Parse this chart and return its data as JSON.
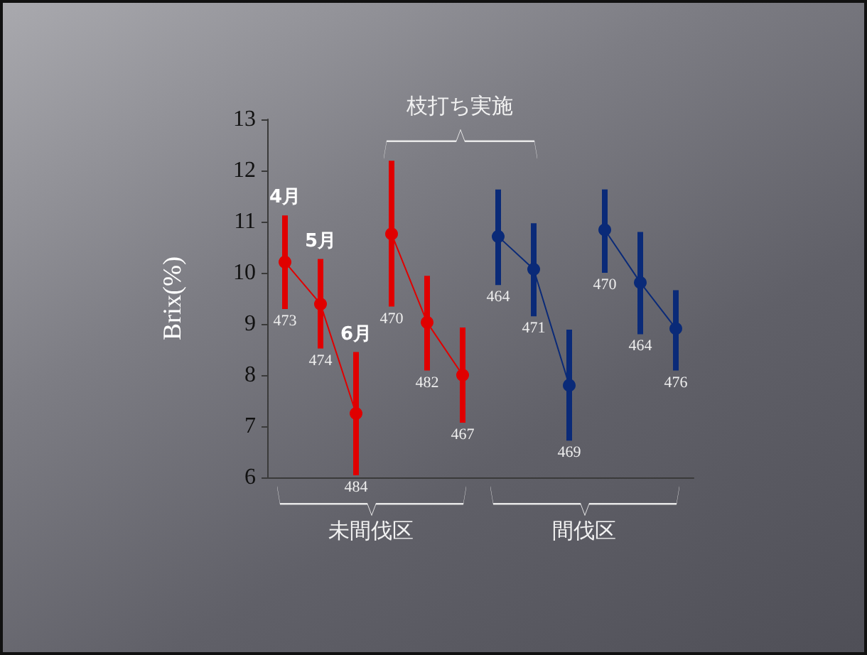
{
  "chart_data": {
    "type": "line",
    "ylabel": "Brix(%)",
    "categories": [
      null,
      null,
      null,
      null,
      null,
      null,
      null,
      null,
      null,
      null,
      null,
      null
    ],
    "ylim": [
      6,
      13
    ],
    "yticks": [
      6,
      7,
      8,
      9,
      10,
      11,
      12,
      13
    ],
    "grid": false,
    "marker": "circle",
    "line_style": "solid",
    "annotations": [
      "4月",
      "5月",
      "6月",
      "枝打ち実施",
      "未間伐区",
      "間伐区",
      "473",
      "474",
      "484",
      "470",
      "482",
      "467",
      "464",
      "471",
      "469",
      "470",
      "464",
      "476"
    ],
    "series": [
      {
        "color": "#e00000",
        "values": [
          10.21,
          9.39,
          7.25,
          null,
          null,
          null,
          null,
          null,
          null,
          null,
          null,
          null
        ],
        "errors": [
          [
            9.29,
            11.12
          ],
          [
            8.52,
            10.27
          ],
          [
            6.04,
            8.45
          ],
          null,
          null,
          null,
          null,
          null,
          null,
          null,
          null,
          null
        ]
      },
      {
        "color": "#e00000",
        "values": [
          null,
          null,
          null,
          10.76,
          9.03,
          8.0,
          null,
          null,
          null,
          null,
          null,
          null
        ],
        "errors": [
          null,
          null,
          null,
          [
            9.34,
            12.19
          ],
          [
            8.09,
            9.94
          ],
          [
            7.07,
            8.93
          ],
          null,
          null,
          null,
          null,
          null,
          null
        ]
      },
      {
        "color": "#0a2a78",
        "values": [
          null,
          null,
          null,
          null,
          null,
          null,
          10.71,
          10.07,
          7.8,
          null,
          null,
          null
        ],
        "errors": [
          null,
          null,
          null,
          null,
          null,
          null,
          [
            9.76,
            11.63
          ],
          [
            9.15,
            10.97
          ],
          [
            6.72,
            8.89
          ],
          null,
          null,
          null
        ]
      },
      {
        "color": "#0a2a78",
        "values": [
          null,
          null,
          null,
          null,
          null,
          null,
          null,
          null,
          null,
          10.84,
          9.81,
          8.91
        ],
        "errors": [
          null,
          null,
          null,
          null,
          null,
          null,
          null,
          null,
          null,
          [
            10.0,
            11.63
          ],
          [
            8.8,
            10.8
          ],
          [
            8.09,
            9.66
          ]
        ]
      }
    ]
  }
}
